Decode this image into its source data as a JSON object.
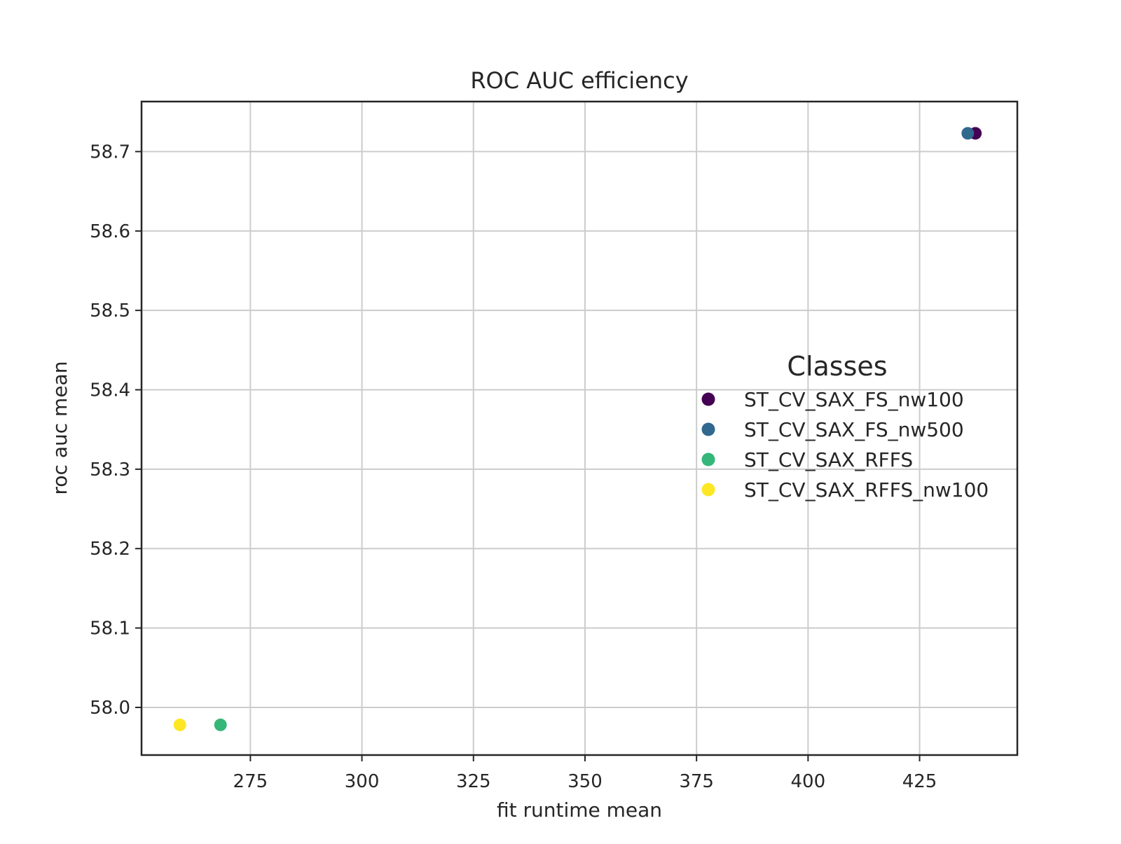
{
  "chart_data": {
    "type": "scatter",
    "title": "ROC AUC efficiency",
    "xlabel": "fit runtime mean",
    "ylabel": "roc auc mean",
    "xlim": [
      250.6,
      446.9
    ],
    "ylim": [
      57.94,
      58.763
    ],
    "xticks": [
      275,
      300,
      325,
      350,
      375,
      400,
      425
    ],
    "yticks": [
      58.0,
      58.1,
      58.2,
      58.3,
      58.4,
      58.5,
      58.6,
      58.7
    ],
    "xtick_labels": [
      "275",
      "300",
      "325",
      "350",
      "375",
      "400",
      "425"
    ],
    "ytick_labels": [
      "58.0",
      "58.1",
      "58.2",
      "58.3",
      "58.4",
      "58.5",
      "58.6",
      "58.7"
    ],
    "grid": true,
    "legend": {
      "title": "Classes",
      "placement": "center-right"
    },
    "series": [
      {
        "name": "ST_CV_SAX_FS_nw100",
        "color": "#440154",
        "x": 437.5,
        "y": 58.723
      },
      {
        "name": "ST_CV_SAX_FS_nw500",
        "color": "#31688e",
        "x": 435.8,
        "y": 58.723
      },
      {
        "name": "ST_CV_SAX_RFFS",
        "color": "#35b779",
        "x": 268.3,
        "y": 57.978
      },
      {
        "name": "ST_CV_SAX_RFFS_nw100",
        "color": "#fde725",
        "x": 259.2,
        "y": 57.978
      }
    ]
  }
}
